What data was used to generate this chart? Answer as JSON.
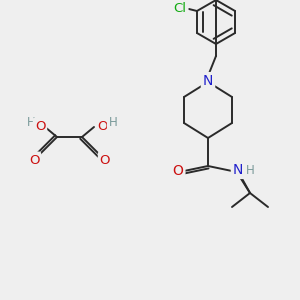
{
  "bg_color": "#efefef",
  "bond_color": "#2a2a2a",
  "bond_width": 1.4,
  "font_size": 8.5,
  "colors": {
    "C": "#2a2a2a",
    "N": "#2020cc",
    "O": "#cc1010",
    "Cl": "#10aa10",
    "H": "#7a9a9a"
  }
}
